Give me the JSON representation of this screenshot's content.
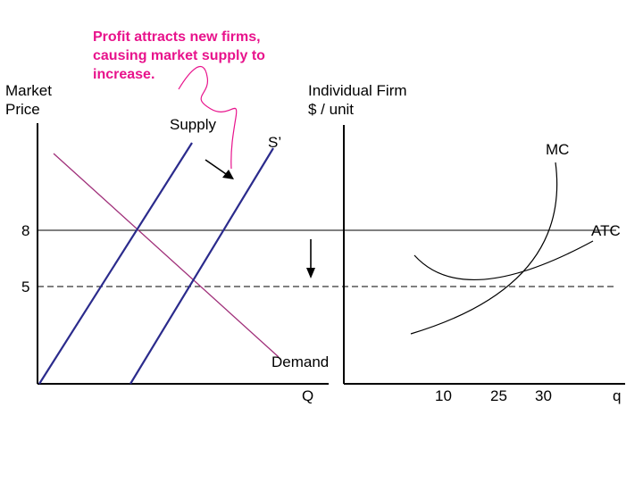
{
  "annotation": {
    "lines": [
      "Profit attracts new firms,",
      "causing market supply to",
      "increase."
    ],
    "color": "#e8138c"
  },
  "market_panel": {
    "y_axis_label_line1": "Market",
    "y_axis_label_line2": "Price",
    "x_axis_label": "Q",
    "supply_label": "Supply",
    "shifted_supply_label": "S’",
    "demand_label": "Demand",
    "price_high_tick": "8",
    "price_low_tick": "5"
  },
  "firm_panel": {
    "y_axis_label_line1": "Individual Firm",
    "y_axis_label_line2": "$ / unit",
    "x_axis_label": "q",
    "mc_label": "MC",
    "atc_label": "ATC",
    "quantity_ticks": [
      "10",
      "25",
      "30"
    ]
  },
  "colors": {
    "supply": "#2b2b8c",
    "demand": "#a0307a",
    "axes": "#000000",
    "curves": "#000000"
  }
}
